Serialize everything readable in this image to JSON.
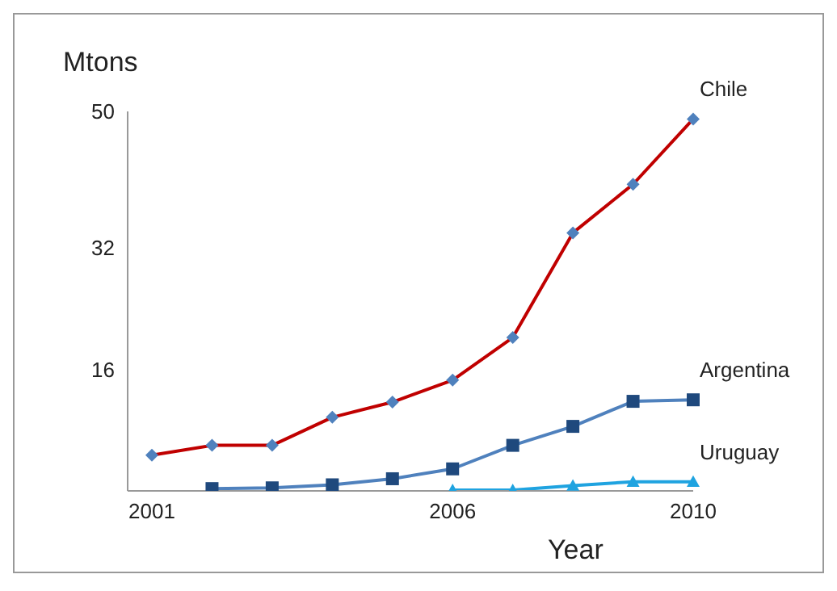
{
  "chart_data": {
    "type": "line",
    "xlabel": "Year",
    "ylabel": "Mtons",
    "categories": [
      "2001",
      null,
      null,
      null,
      null,
      "2006",
      null,
      null,
      null,
      "2010"
    ],
    "series": [
      {
        "name": "Chile",
        "color": "#c00000",
        "marker": "diamond",
        "values": [
          4.7,
          6.0,
          6.0,
          9.7,
          11.7,
          14.6,
          20.2,
          34.0,
          40.4,
          49.0
        ]
      },
      {
        "name": "Argentina",
        "color": "#4f81bd",
        "marker": "square",
        "values": [
          null,
          0.3,
          0.4,
          0.8,
          1.6,
          2.9,
          6.0,
          8.5,
          11.8,
          12.0
        ]
      },
      {
        "name": "Uruguay",
        "color": "#1fa3e0",
        "marker": "triangle",
        "values": [
          null,
          null,
          null,
          null,
          null,
          0.1,
          0.1,
          0.7,
          1.2,
          1.2
        ]
      }
    ],
    "ylim": [
      0,
      50
    ],
    "yticks": [
      16,
      32,
      50
    ],
    "grid": false,
    "legend": false
  }
}
